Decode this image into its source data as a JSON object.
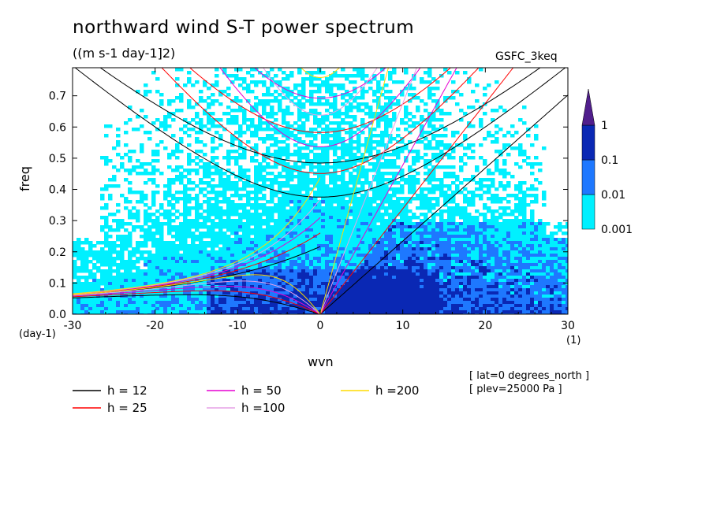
{
  "title": "northward wind S-T power spectrum",
  "subtitle": "((m s-1 day-1]2)",
  "dataset": "GSFC_3keq",
  "meta": [
    "[ lat=0 degrees_north ]",
    "[ plev=25000 Pa ]"
  ],
  "chart_data": {
    "type": "heatmap",
    "xlabel": "wvn",
    "ylabel": "freq",
    "x_units": "(1)",
    "y_units": "(day-1)",
    "xlim": [
      -30,
      30
    ],
    "ylim": [
      0,
      0.79
    ],
    "x_ticks": [
      -30,
      -20,
      -10,
      0,
      10,
      20,
      30
    ],
    "y_ticks": [
      0.0,
      0.1,
      0.2,
      0.3,
      0.4,
      0.5,
      0.6,
      0.7
    ],
    "colorbar": {
      "levels": [
        "0.001",
        "0.01",
        "0.1",
        "1"
      ],
      "colors": [
        "#00f0ff",
        "#1e78ff",
        "#0a28b4",
        "#501e8c"
      ]
    },
    "dispersion_curves": [
      {
        "label": "h = 12",
        "equivalent_depth": 12,
        "color": "#000000"
      },
      {
        "label": "h = 25",
        "equivalent_depth": 25,
        "color": "#ff0000"
      },
      {
        "label": "h = 50",
        "equivalent_depth": 50,
        "color": "#e600d2"
      },
      {
        "label": "h =100",
        "equivalent_depth": 100,
        "color": "#e6a0e6"
      },
      {
        "label": "h =200",
        "equivalent_depth": 200,
        "color": "#ffdc00"
      }
    ]
  }
}
